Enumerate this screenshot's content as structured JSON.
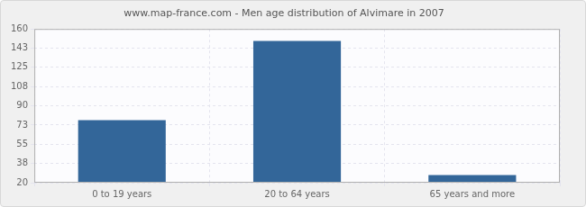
{
  "chart_data": {
    "type": "bar",
    "title": "www.map-france.com - Men age distribution of Alvimare in 2007",
    "categories": [
      "0 to 19 years",
      "20 to 64 years",
      "65 years and more"
    ],
    "values": [
      77,
      149,
      27
    ],
    "color": "#336699",
    "ylim": [
      20,
      160
    ],
    "yticks": [
      20,
      {
        "value": 37.5,
        "label": "38"
      },
      55,
      {
        "value": 72.5,
        "label": "73"
      },
      90,
      {
        "value": 107.5,
        "label": "108"
      },
      125,
      {
        "value": 142.5,
        "label": "143"
      },
      160
    ],
    "grid": true
  }
}
